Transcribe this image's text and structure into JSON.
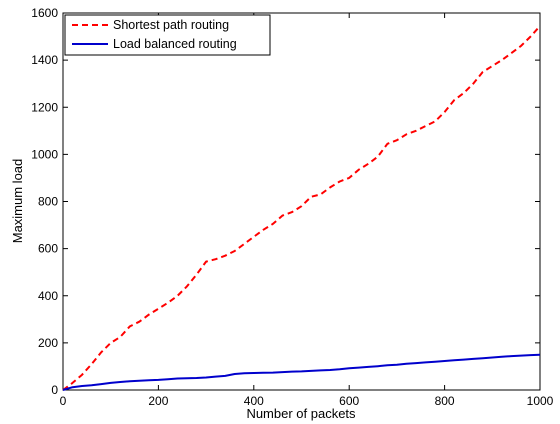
{
  "chart_data": {
    "type": "line",
    "xlabel": "Number of packets",
    "ylabel": "Maximum load",
    "xlim": [
      0,
      1000
    ],
    "ylim": [
      0,
      1600
    ],
    "xticks": [
      0,
      200,
      400,
      600,
      800,
      1000
    ],
    "yticks": [
      0,
      200,
      400,
      600,
      800,
      1000,
      1200,
      1400,
      1600
    ],
    "grid": false,
    "legend_position": "top-left",
    "series": [
      {
        "name": "Shortest path routing",
        "color": "#ff0000",
        "dash": "dashed",
        "x": [
          0,
          20,
          40,
          60,
          80,
          100,
          120,
          140,
          160,
          180,
          200,
          220,
          240,
          260,
          280,
          300,
          320,
          340,
          360,
          380,
          400,
          420,
          440,
          460,
          480,
          500,
          520,
          540,
          560,
          580,
          600,
          620,
          640,
          660,
          680,
          700,
          720,
          740,
          760,
          780,
          800,
          820,
          840,
          860,
          880,
          900,
          920,
          940,
          960,
          980,
          1000
        ],
        "y": [
          0,
          30,
          65,
          110,
          160,
          200,
          225,
          270,
          290,
          320,
          345,
          370,
          400,
          440,
          490,
          545,
          555,
          570,
          590,
          620,
          650,
          680,
          705,
          740,
          755,
          780,
          820,
          830,
          860,
          885,
          900,
          935,
          960,
          990,
          1045,
          1060,
          1085,
          1100,
          1120,
          1140,
          1180,
          1230,
          1260,
          1300,
          1350,
          1375,
          1400,
          1430,
          1460,
          1500,
          1545
        ]
      },
      {
        "name": "Load balanced routing",
        "color": "#0000cc",
        "dash": "solid",
        "x": [
          0,
          20,
          40,
          60,
          80,
          100,
          120,
          140,
          160,
          180,
          200,
          220,
          240,
          260,
          280,
          300,
          320,
          340,
          360,
          380,
          400,
          420,
          440,
          460,
          480,
          500,
          520,
          540,
          560,
          580,
          600,
          620,
          640,
          660,
          680,
          700,
          720,
          740,
          760,
          780,
          800,
          820,
          840,
          860,
          880,
          900,
          920,
          940,
          960,
          980,
          1000
        ],
        "y": [
          0,
          12,
          17,
          20,
          25,
          30,
          34,
          37,
          39,
          41,
          43,
          46,
          49,
          50,
          51,
          53,
          57,
          60,
          68,
          71,
          72,
          73,
          74,
          76,
          78,
          79,
          81,
          83,
          85,
          88,
          92,
          95,
          98,
          101,
          105,
          107,
          111,
          114,
          117,
          120,
          123,
          126,
          129,
          132,
          135,
          138,
          141,
          144,
          146,
          148,
          150
        ]
      }
    ]
  }
}
